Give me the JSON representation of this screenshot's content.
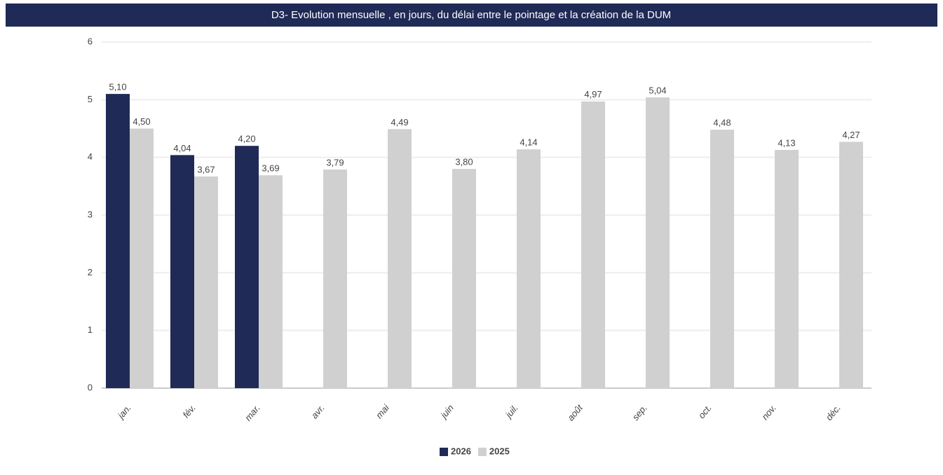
{
  "chart_data": {
    "type": "bar",
    "title": "D3- Evolution mensuelle , en jours, du délai entre le pointage et la création de la DUM",
    "categories": [
      "jan.",
      "fév.",
      "mar.",
      "avr.",
      "mai",
      "juin",
      "juil.",
      "août",
      "sep.",
      "oct.",
      "nov.",
      "déc."
    ],
    "series": [
      {
        "name": "2026",
        "color": "#1f2a56",
        "values": [
          5.1,
          4.04,
          4.2,
          null,
          null,
          null,
          null,
          null,
          null,
          null,
          null,
          null
        ],
        "value_labels": [
          "5,10",
          "4,04",
          "4,20",
          null,
          null,
          null,
          null,
          null,
          null,
          null,
          null,
          null
        ]
      },
      {
        "name": "2025",
        "color": "#d0d0d0",
        "values": [
          4.5,
          3.67,
          3.69,
          3.79,
          4.49,
          3.8,
          4.14,
          4.97,
          5.04,
          4.48,
          4.13,
          4.27
        ],
        "value_labels": [
          "4,50",
          "3,67",
          "3,69",
          "3,79",
          "4,49",
          "3,80",
          "4,14",
          "4,97",
          "5,04",
          "4,48",
          "4,13",
          "4,27"
        ]
      }
    ],
    "ylim": [
      0,
      6
    ],
    "yticks": [
      0,
      1,
      2,
      3,
      4,
      5,
      6
    ],
    "grid": true,
    "legend": "bottom"
  }
}
